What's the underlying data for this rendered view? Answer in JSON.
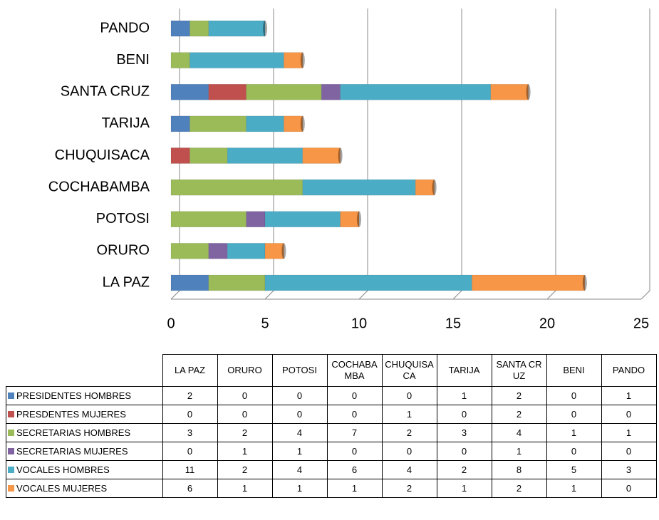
{
  "chart_data": {
    "type": "stacked-bar-horizontal",
    "categories": [
      "LA PAZ",
      "ORURO",
      "POTOSI",
      "COCHABAMBA",
      "CHUQUISACA",
      "TARIJA",
      "SANTA CRUZ",
      "BENI",
      "PANDO"
    ],
    "series": [
      {
        "name": "PRESIDENTES HOMBRES",
        "color": "#4f81bd",
        "values": [
          2,
          0,
          0,
          0,
          0,
          1,
          2,
          0,
          1
        ]
      },
      {
        "name": "PRESDENTES MUJERES",
        "color": "#c0504d",
        "values": [
          0,
          0,
          0,
          0,
          1,
          0,
          2,
          0,
          0
        ]
      },
      {
        "name": "SECRETARIAS HOMBRES",
        "color": "#9bbb59",
        "values": [
          3,
          2,
          4,
          7,
          2,
          3,
          4,
          1,
          1
        ]
      },
      {
        "name": "SECRETARIAS MUJERES",
        "color": "#8064a2",
        "values": [
          0,
          1,
          1,
          0,
          0,
          0,
          1,
          0,
          0
        ]
      },
      {
        "name": "VOCALES HOMBRES",
        "color": "#4bacc6",
        "values": [
          11,
          2,
          4,
          6,
          4,
          2,
          8,
          5,
          3
        ]
      },
      {
        "name": "VOCALES MUJERES",
        "color": "#f79646",
        "values": [
          6,
          1,
          1,
          1,
          2,
          1,
          2,
          1,
          0
        ]
      }
    ],
    "xlim": [
      0,
      25
    ],
    "xticks": [
      0,
      5,
      10,
      15,
      20,
      25
    ],
    "grid": true
  }
}
